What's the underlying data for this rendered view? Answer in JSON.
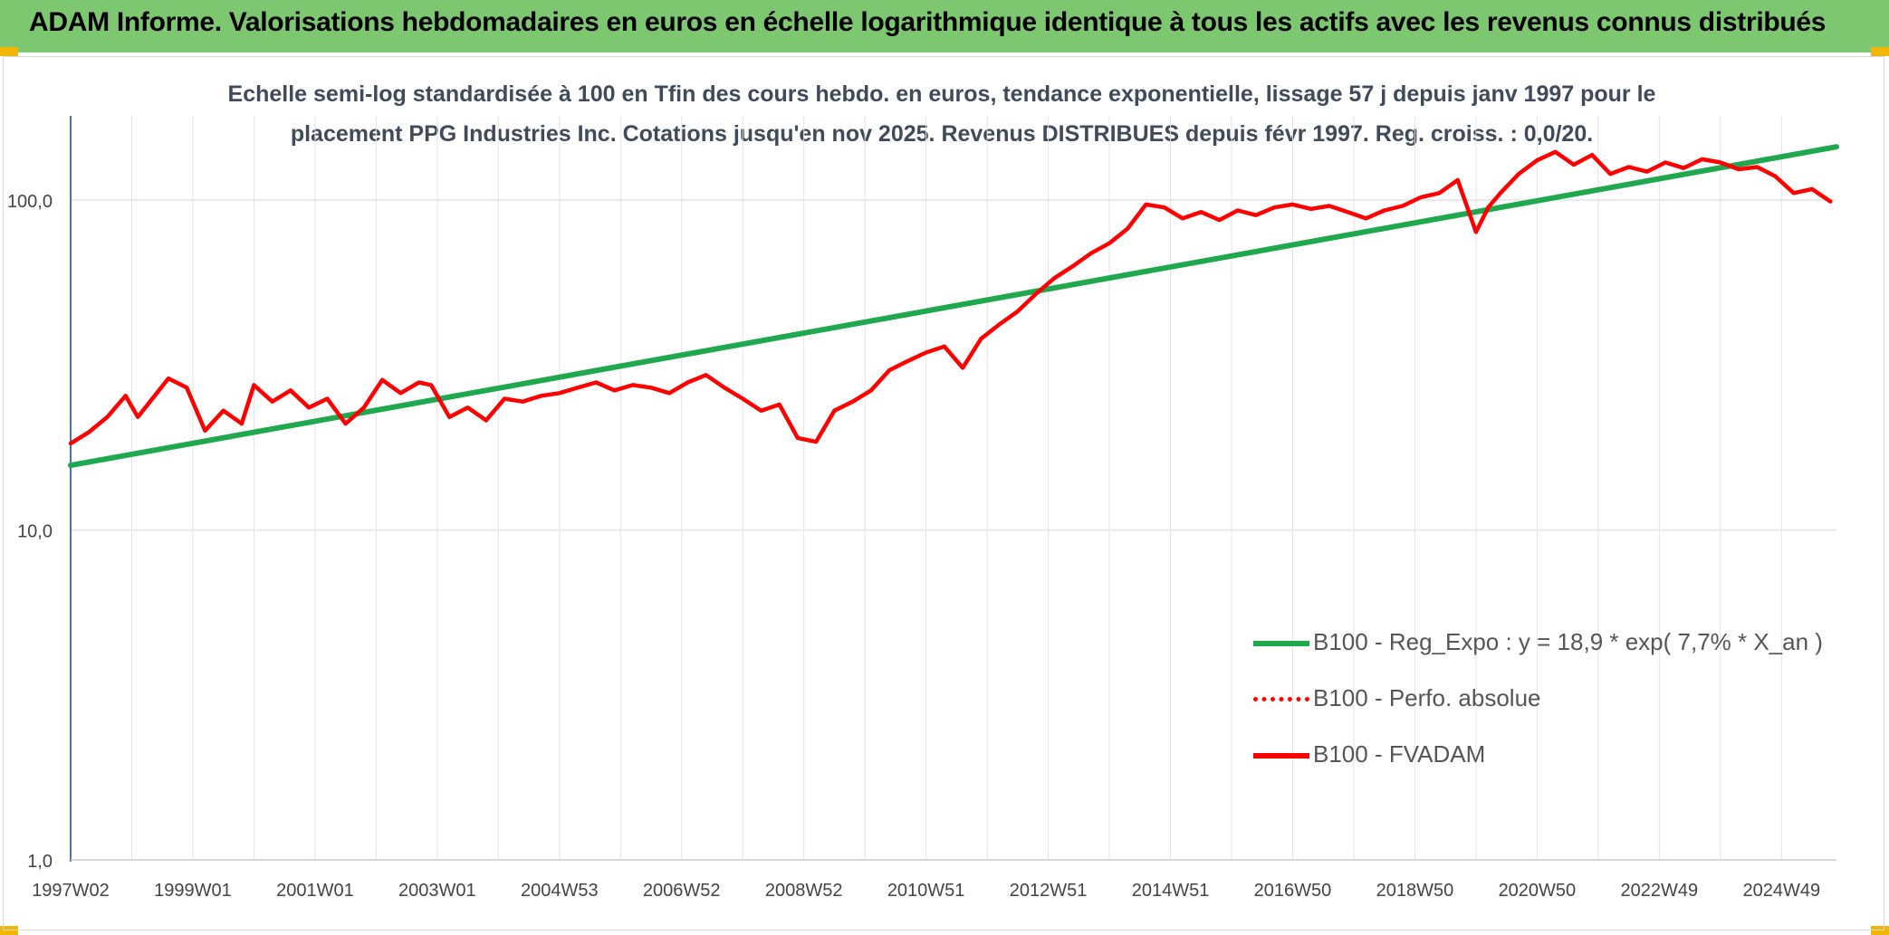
{
  "header": {
    "title": "ADAM Informe. Valorisations hebdomadaires en euros en échelle logarithmique identique à tous les actifs avec les revenus connus distribués",
    "accent_color": "#7dc771",
    "corner_color": "#f2b705"
  },
  "chart_data": {
    "type": "line",
    "title_line1": "Echelle semi-log standardisée à 100 en Tfin des cours hebdo. en euros, tendance exponentielle, lissage 57 j depuis janv 1997 pour le",
    "title_line2": "placement PPG Industries Inc. Cotations jusqu'en nov 2025. Revenus DISTRIBUES depuis févr 1997. Reg. croiss. : 0,0/20.",
    "y_scale": "log",
    "ylim": [
      1,
      180
    ],
    "y_ticks": [
      {
        "value": 1,
        "label": "1,0"
      },
      {
        "value": 10,
        "label": "10,0"
      },
      {
        "value": 100,
        "label": "100,0"
      }
    ],
    "xlim": [
      1997.0,
      2025.9
    ],
    "x_ticks": [
      {
        "value": 1997.0,
        "label": "1997W02"
      },
      {
        "value": 1999.0,
        "label": "1999W01"
      },
      {
        "value": 2001.0,
        "label": "2001W01"
      },
      {
        "value": 2003.0,
        "label": "2003W01"
      },
      {
        "value": 2005.0,
        "label": "2004W53"
      },
      {
        "value": 2007.0,
        "label": "2006W52"
      },
      {
        "value": 2009.0,
        "label": "2008W52"
      },
      {
        "value": 2011.0,
        "label": "2010W51"
      },
      {
        "value": 2013.0,
        "label": "2012W51"
      },
      {
        "value": 2015.0,
        "label": "2014W51"
      },
      {
        "value": 2017.0,
        "label": "2016W50"
      },
      {
        "value": 2019.0,
        "label": "2018W50"
      },
      {
        "value": 2021.0,
        "label": "2020W50"
      },
      {
        "value": 2023.0,
        "label": "2022W49"
      },
      {
        "value": 2025.0,
        "label": "2024W49"
      }
    ],
    "grid": true,
    "legend_position": "bottom-right",
    "series": [
      {
        "name": "B100 - Reg_Expo : y = 18,9 * exp( 7,7% *  X_an )",
        "color": "#1fa84e",
        "style": "solid",
        "x": [
          1997.0,
          2025.9
        ],
        "values": [
          15.7,
          145
        ]
      },
      {
        "name": "B100 - Perfo. absolue",
        "color": "#ff0000",
        "style": "dotted",
        "x": [],
        "values": []
      },
      {
        "name": "B100 - FVADAM",
        "color": "#ff0000",
        "style": "solid",
        "x": [
          1997.0,
          1997.3,
          1997.6,
          1997.9,
          1998.1,
          1998.3,
          1998.6,
          1998.9,
          1999.2,
          1999.5,
          1999.8,
          2000.0,
          2000.3,
          2000.6,
          2000.9,
          2001.2,
          2001.5,
          2001.8,
          2002.1,
          2002.4,
          2002.7,
          2002.9,
          2003.2,
          2003.5,
          2003.8,
          2004.1,
          2004.4,
          2004.7,
          2005.0,
          2005.3,
          2005.6,
          2005.9,
          2006.2,
          2006.5,
          2006.8,
          2007.1,
          2007.4,
          2007.7,
          2008.0,
          2008.3,
          2008.6,
          2008.9,
          2009.2,
          2009.5,
          2009.8,
          2010.1,
          2010.4,
          2010.7,
          2011.0,
          2011.3,
          2011.6,
          2011.9,
          2012.2,
          2012.5,
          2012.8,
          2013.1,
          2013.4,
          2013.7,
          2014.0,
          2014.3,
          2014.6,
          2014.9,
          2015.2,
          2015.5,
          2015.8,
          2016.1,
          2016.4,
          2016.7,
          2017.0,
          2017.3,
          2017.6,
          2017.9,
          2018.2,
          2018.5,
          2018.8,
          2019.1,
          2019.4,
          2019.7,
          2020.0,
          2020.2,
          2020.4,
          2020.7,
          2021.0,
          2021.3,
          2021.6,
          2021.9,
          2022.2,
          2022.5,
          2022.8,
          2023.1,
          2023.4,
          2023.7,
          2024.0,
          2024.3,
          2024.6,
          2024.9,
          2025.2,
          2025.5,
          2025.8
        ],
        "values": [
          18.3,
          19.8,
          22.0,
          25.5,
          22.0,
          24.5,
          28.8,
          27.0,
          20.0,
          23.0,
          21.0,
          27.5,
          24.5,
          26.5,
          23.5,
          25.0,
          21.0,
          23.5,
          28.5,
          26.0,
          28.0,
          27.5,
          22.0,
          23.5,
          21.5,
          25.0,
          24.5,
          25.5,
          26.0,
          27.0,
          28.0,
          26.5,
          27.5,
          27.0,
          26.0,
          28.0,
          29.5,
          27.0,
          25.0,
          23.0,
          24.0,
          19.0,
          18.5,
          23.0,
          24.5,
          26.5,
          30.5,
          32.5,
          34.5,
          36.0,
          31.0,
          38.0,
          42.0,
          46.0,
          52.0,
          58.0,
          63.0,
          69.0,
          74.0,
          82.0,
          97.0,
          95.0,
          88.0,
          92.0,
          87.0,
          93.0,
          90.0,
          95.0,
          97.0,
          94.0,
          96.0,
          92.0,
          88.0,
          93.0,
          96.0,
          102.0,
          105.0,
          115.0,
          80.0,
          95.0,
          105.0,
          120.0,
          132.0,
          140.0,
          128.0,
          137.0,
          120.0,
          126.0,
          122.0,
          130.0,
          125.0,
          133.0,
          130.0,
          124.0,
          126.0,
          118.0,
          105.0,
          108.0,
          99.0
        ]
      }
    ]
  }
}
